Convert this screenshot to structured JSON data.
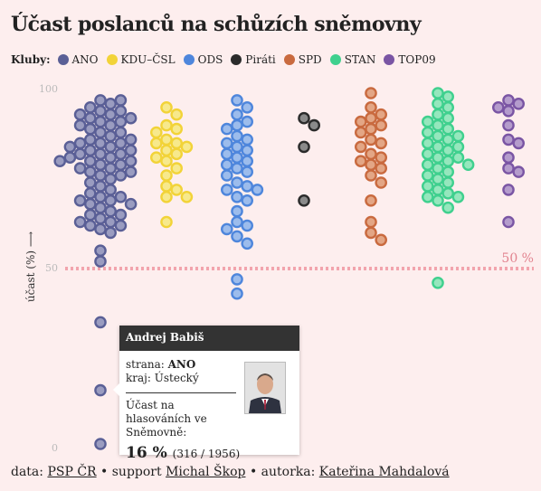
{
  "title": "Účast poslanců na schůzích sněmovny",
  "legend": {
    "lead": "Kluby:",
    "items": [
      {
        "label": "ANO",
        "color": "#5a5f96"
      },
      {
        "label": "KDU–ČSL",
        "color": "#f2d338"
      },
      {
        "label": "ODS",
        "color": "#4e86dc"
      },
      {
        "label": "Piráti",
        "color": "#2b2b2b"
      },
      {
        "label": "SPD",
        "color": "#c96a3f"
      },
      {
        "label": "STAN",
        "color": "#3fd08e"
      },
      {
        "label": "TOP09",
        "color": "#7a55a4"
      }
    ]
  },
  "chart_data": {
    "type": "scatter",
    "ylabel": "účast (%) ⟶",
    "ylim": [
      0,
      100
    ],
    "yticks": [
      "0",
      "50",
      "100"
    ],
    "reference_line": {
      "value": 50,
      "label": "50 %"
    },
    "series": [
      {
        "name": "ANO",
        "color": "#5a5f96",
        "fill": "#9a9cc0",
        "values": [
          97,
          97,
          96,
          95,
          94,
          94,
          93,
          93,
          92,
          92,
          91,
          91,
          90,
          90,
          89,
          88,
          88,
          87,
          86,
          86,
          85,
          85,
          85,
          84,
          84,
          83,
          83,
          82,
          82,
          82,
          81,
          81,
          80,
          80,
          80,
          79,
          79,
          78,
          78,
          77,
          77,
          76,
          76,
          75,
          74,
          73,
          72,
          71,
          70,
          70,
          69,
          69,
          68,
          68,
          67,
          66,
          65,
          65,
          64,
          63,
          63,
          62,
          62,
          61,
          60,
          55,
          52,
          35,
          16,
          1
        ]
      },
      {
        "name": "KDU–ČSL",
        "color": "#f2d338",
        "fill": "#f7e98c",
        "values": [
          95,
          93,
          90,
          89,
          88,
          86,
          85,
          85,
          84,
          83,
          82,
          81,
          80,
          78,
          76,
          73,
          72,
          70,
          70,
          63
        ]
      },
      {
        "name": "ODS",
        "color": "#4e86dc",
        "fill": "#9cbcec",
        "values": [
          97,
          95,
          93,
          91,
          90,
          89,
          87,
          86,
          85,
          84,
          83,
          82,
          81,
          80,
          79,
          78,
          77,
          76,
          74,
          73,
          72,
          72,
          70,
          69,
          66,
          63,
          62,
          61,
          59,
          57,
          47,
          43
        ]
      },
      {
        "name": "Piráti",
        "color": "#2b2b2b",
        "fill": "#8a8a8a",
        "values": [
          92,
          90,
          84,
          69
        ]
      },
      {
        "name": "SPD",
        "color": "#c96a3f",
        "fill": "#e3a685",
        "values": [
          99,
          95,
          93,
          92,
          91,
          90,
          89,
          88,
          86,
          85,
          84,
          82,
          81,
          80,
          79,
          78,
          76,
          74,
          69,
          63,
          60,
          58
        ]
      },
      {
        "name": "STAN",
        "color": "#3fd08e",
        "fill": "#95e7bd",
        "values": [
          99,
          98,
          96,
          95,
          93,
          92,
          91,
          90,
          89,
          88,
          87,
          87,
          86,
          85,
          84,
          84,
          83,
          82,
          81,
          81,
          80,
          79,
          79,
          78,
          77,
          76,
          75,
          74,
          73,
          72,
          71,
          70,
          70,
          69,
          67,
          46
        ]
      },
      {
        "name": "TOP09",
        "color": "#7a55a4",
        "fill": "#b49ccc",
        "values": [
          97,
          96,
          95,
          94,
          90,
          86,
          85,
          81,
          78,
          77,
          72,
          63
        ]
      }
    ]
  },
  "tooltip": {
    "name": "Andrej Babiš",
    "party_label": "strana: ",
    "party": "ANO",
    "region_label": "kraj: ",
    "region": "Ústecký",
    "metric_label": "Účast na hlasováních ve Sněmovně:",
    "percent": "16 %",
    "detail": "(316 / 1956)"
  },
  "footer": {
    "data_prefix": "data: ",
    "data_link": "PSP ČR",
    "support_prefix": " • support ",
    "support_link": "Michal Škop",
    "author_prefix": " • autorka: ",
    "author_link": "Kateřina Mahdalová"
  }
}
